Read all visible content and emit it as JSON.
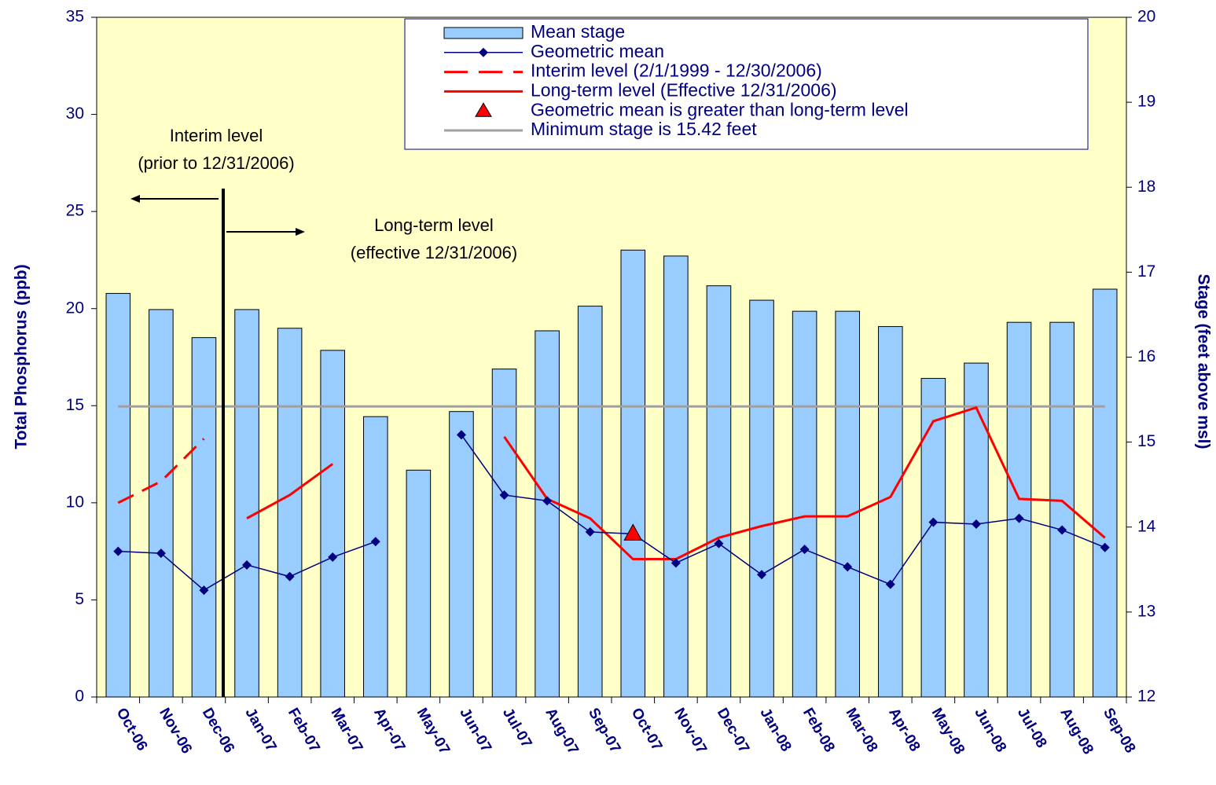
{
  "chart_data": {
    "type": "combo",
    "y_label": "Total Phosphorus (ppb)",
    "y2_label": "Stage (feet above msl)",
    "categories": [
      "Oct-06",
      "Nov-06",
      "Dec-06",
      "Jan-07",
      "Feb-07",
      "Mar-07",
      "Apr-07",
      "May-07",
      "Jun-07",
      "Jul-07",
      "Aug-07",
      "Sep-07",
      "Oct-07",
      "Nov-07",
      "Dec-07",
      "Jan-08",
      "Feb-08",
      "Mar-08",
      "Apr-08",
      "May-08",
      "Jun-08",
      "Jul-08",
      "Aug-08",
      "Sep-08"
    ],
    "ylim": [
      0,
      35
    ],
    "yticks": [
      0,
      5,
      10,
      15,
      20,
      25,
      30,
      35
    ],
    "y2lim": [
      12,
      20
    ],
    "y2ticks": [
      12,
      13,
      14,
      15,
      16,
      17,
      18,
      19,
      20
    ],
    "series": [
      {
        "name": "Mean stage",
        "type": "bar",
        "axis": "y2",
        "color": "#99ccff",
        "values": [
          16.75,
          16.56,
          16.23,
          16.56,
          16.34,
          16.08,
          15.3,
          14.67,
          15.36,
          15.86,
          16.31,
          16.6,
          17.26,
          17.19,
          16.84,
          16.67,
          16.54,
          16.54,
          16.36,
          15.75,
          15.93,
          16.41,
          16.41,
          16.8
        ]
      },
      {
        "name": "Geometric mean",
        "type": "line",
        "marker": "diamond",
        "color": "#000080",
        "values": [
          7.5,
          7.4,
          5.5,
          6.8,
          6.2,
          7.2,
          8.0,
          null,
          13.5,
          10.4,
          10.1,
          8.5,
          8.4,
          6.9,
          7.9,
          6.3,
          7.6,
          6.7,
          5.8,
          9.0,
          8.9,
          9.2,
          8.6,
          7.7
        ]
      },
      {
        "name": "Interim level (2/1/1999 - 12/30/2006)",
        "type": "line",
        "dash": true,
        "color": "#ff0000",
        "values": [
          10.0,
          11.1,
          13.3,
          null,
          null,
          null,
          null,
          null,
          null,
          null,
          null,
          null,
          null,
          null,
          null,
          null,
          null,
          null,
          null,
          null,
          null,
          null,
          null,
          null
        ]
      },
      {
        "name": "Long-term level (Effective 12/31/2006)",
        "type": "line",
        "color": "#ff0000",
        "values": [
          null,
          null,
          null,
          9.2,
          10.4,
          12.0,
          null,
          null,
          null,
          13.4,
          10.2,
          9.2,
          7.1,
          7.1,
          8.2,
          8.8,
          9.3,
          9.3,
          10.3,
          14.2,
          14.9,
          10.2,
          10.1,
          8.2
        ]
      }
    ],
    "markers": [
      {
        "name": "Geometric mean is greater than long-term level",
        "x": "Oct-07",
        "value": 8.4,
        "color": "#ff0000"
      }
    ],
    "reference_lines": [
      {
        "name": "Minimum stage is 15.42 feet",
        "value": 15.42,
        "axis": "y2",
        "color": "#a0a0a0"
      }
    ],
    "annotations": [
      "Interim level",
      "(prior to 12/31/2006)",
      "Long-term level",
      "(effective 12/31/2006)"
    ]
  }
}
